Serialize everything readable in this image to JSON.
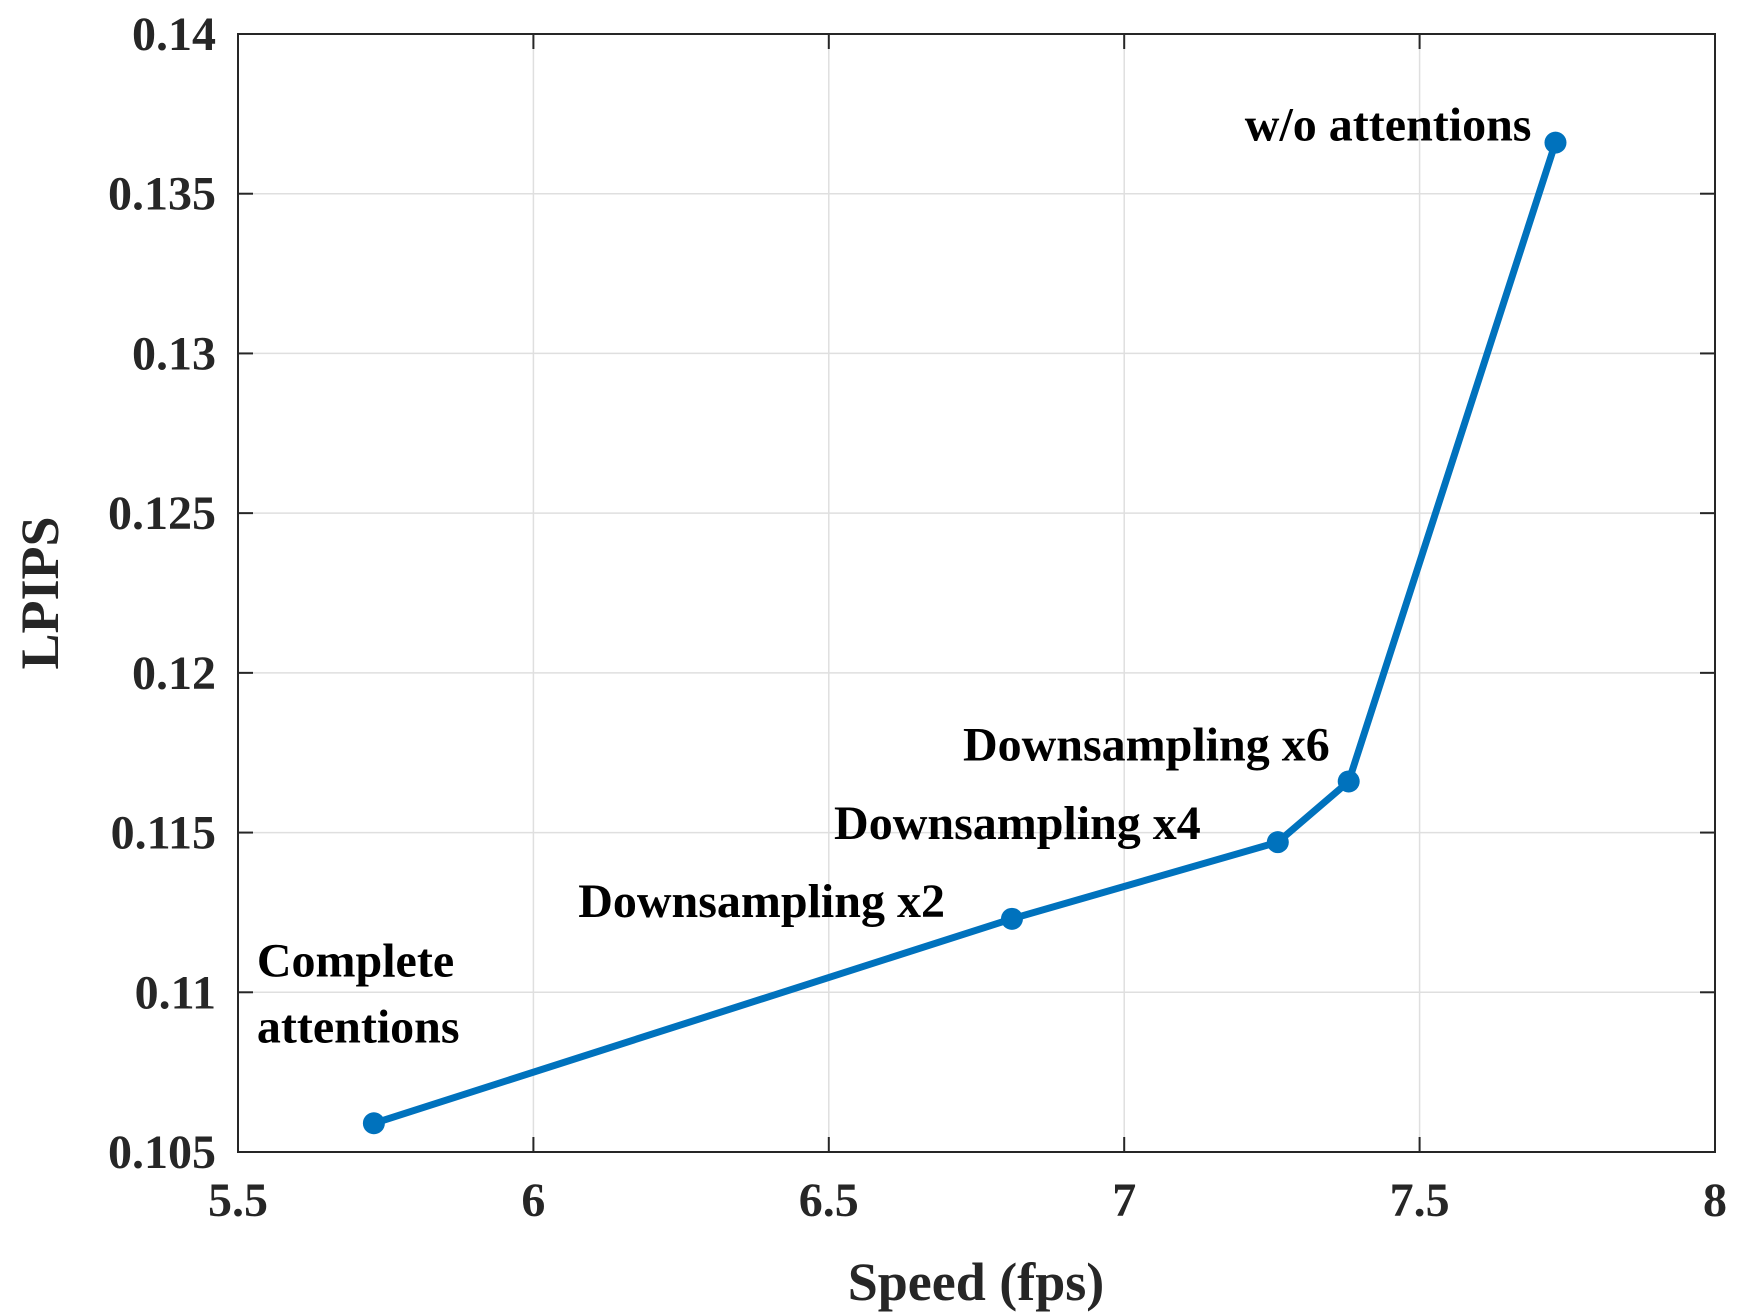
{
  "chart_data": {
    "type": "line",
    "xlabel": "Speed (fps)",
    "ylabel": "LPIPS",
    "xlim": [
      5.5,
      8
    ],
    "ylim": [
      0.105,
      0.14
    ],
    "xticks": [
      "5.5",
      "6",
      "6.5",
      "7",
      "7.5",
      "8"
    ],
    "yticks": [
      "0.105",
      "0.11",
      "0.115",
      "0.12",
      "0.125",
      "0.13",
      "0.135",
      "0.14"
    ],
    "grid": true,
    "line_color": "#0072BD",
    "series": [
      {
        "x": [
          5.73,
          6.81,
          7.26,
          7.38,
          7.73
        ],
        "y": [
          0.1059,
          0.1123,
          0.1147,
          0.1166,
          0.1366
        ]
      }
    ],
    "annotations": [
      {
        "lines": [
          "Complete",
          "attentions"
        ],
        "point": 0
      },
      {
        "lines": [
          "Downsampling x2"
        ],
        "point": 1
      },
      {
        "lines": [
          "Downsampling x4"
        ],
        "point": 2
      },
      {
        "lines": [
          "Downsampling x6"
        ],
        "point": 3
      },
      {
        "lines": [
          "w/o attentions"
        ],
        "point": 4
      }
    ]
  }
}
